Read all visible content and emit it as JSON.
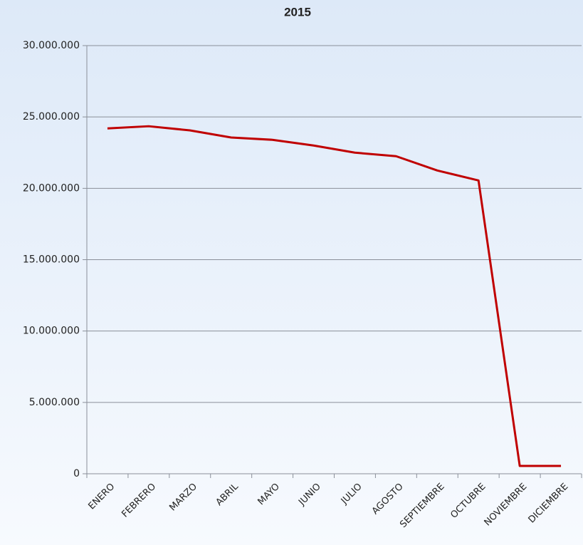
{
  "chart_data": {
    "type": "line",
    "title": "2015",
    "categories": [
      "ENERO",
      "FEBRERO",
      "MARZO",
      "ABRIL",
      "MAYO",
      "JUNIO",
      "JULIO",
      "AGOSTO",
      "SEPTIEMBRE",
      "OCTUBRE",
      "NOVIEMBRE",
      "DICIEMBRE"
    ],
    "series": [
      {
        "name": "2015",
        "color": "#c00000",
        "values": [
          24200000,
          24350000,
          24060000,
          23560000,
          23400000,
          23000000,
          22500000,
          22250000,
          21250000,
          20550000,
          550000,
          550000
        ]
      }
    ],
    "ylim": [
      0,
      30000000
    ],
    "yticks": [
      0,
      {
        "value": 5000000,
        "label": "5.000.000"
      },
      {
        "value": 10000000,
        "label": "10.000.000"
      },
      {
        "value": 15000000,
        "label": "15.000.000"
      },
      {
        "value": 20000000,
        "label": "20.000.000"
      },
      {
        "value": 25000000,
        "label": "25.000.000"
      },
      {
        "value": 30000000,
        "label": "30.000.000"
      }
    ],
    "grid": true
  }
}
